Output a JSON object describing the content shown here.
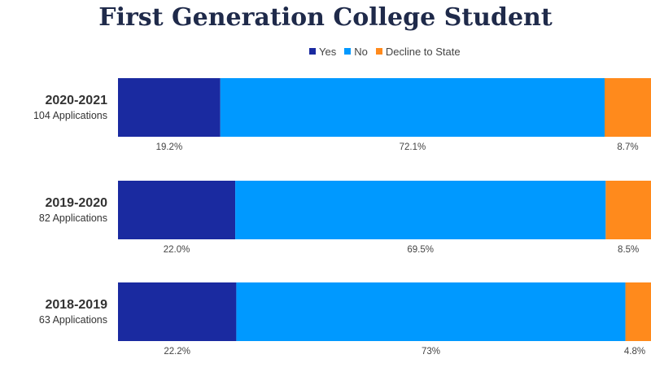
{
  "chart_data": {
    "type": "bar",
    "orientation": "horizontal",
    "stacked": true,
    "title": "First Generation College Student",
    "legend_position": "top",
    "grid": false,
    "categories": [
      {
        "year": "2020-2021",
        "applications": "104 Applications"
      },
      {
        "year": "2019-2020",
        "applications": "82 Applications"
      },
      {
        "year": "2018-2019",
        "applications": "63 Applications"
      }
    ],
    "series": [
      {
        "name": "Yes",
        "color": "#1a2aa0",
        "values": [
          19.2,
          22.0,
          22.2
        ],
        "labels": [
          "19.2%",
          "22.0%",
          "22.2%"
        ]
      },
      {
        "name": "No",
        "color": "#0099ff",
        "values": [
          72.1,
          69.5,
          73
        ],
        "labels": [
          "72.1%",
          "69.5%",
          "73%"
        ]
      },
      {
        "name": "Decline to State",
        "color": "#ff8a1c",
        "values": [
          8.7,
          8.5,
          4.8
        ],
        "labels": [
          "8.7%",
          "8.5%",
          "4.8%"
        ]
      }
    ]
  }
}
